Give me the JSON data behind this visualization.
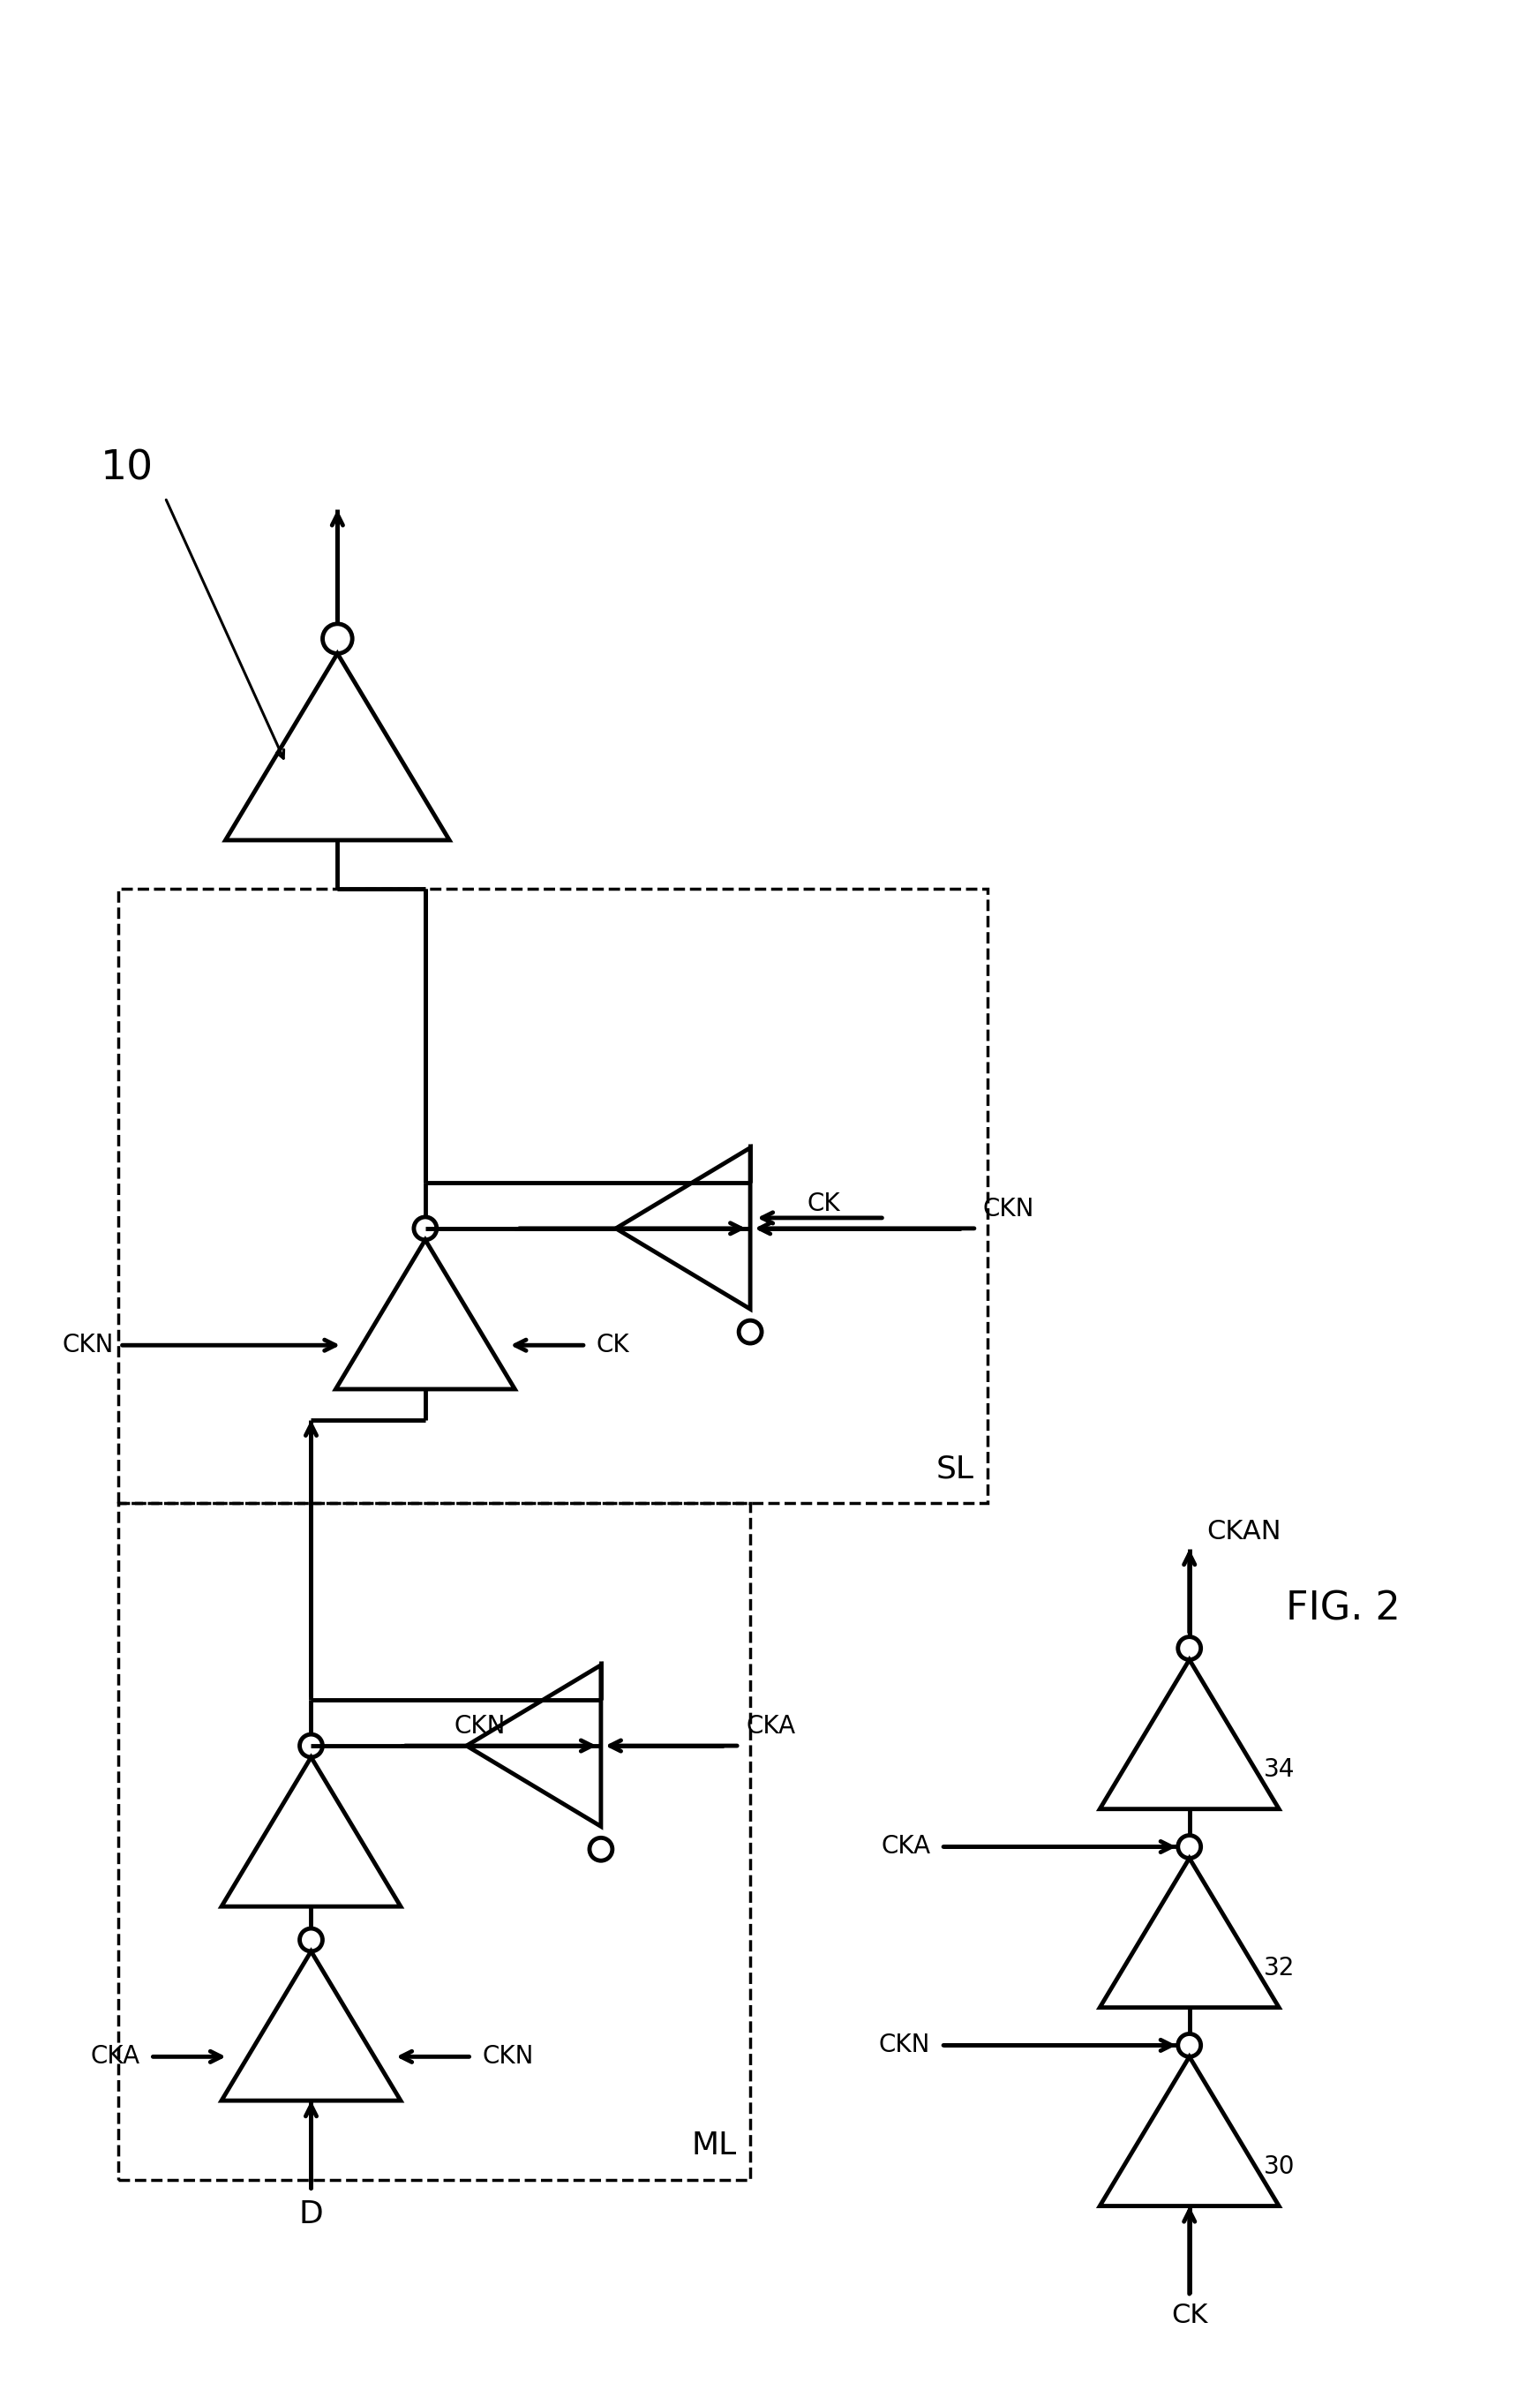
{
  "fig_width": 17.45,
  "fig_height": 27.25,
  "bg": "#ffffff",
  "lc": "#000000",
  "lw": 3.5,
  "dlw": 2.5,
  "tr": 0.13,
  "ts": 1.7,
  "fs_xl": 32,
  "fs_lg": 26,
  "fs_md": 22,
  "fs_sm": 20,
  "label_10": "10",
  "label_ML": "ML",
  "label_SL": "SL",
  "label_D": "D",
  "label_CK": "CK",
  "label_CKN": "CKN",
  "label_CKA": "CKA",
  "label_CKAN": "CKAN",
  "label_30": "30",
  "label_32": "32",
  "label_34": "34",
  "label_fig": "FIG. 2"
}
